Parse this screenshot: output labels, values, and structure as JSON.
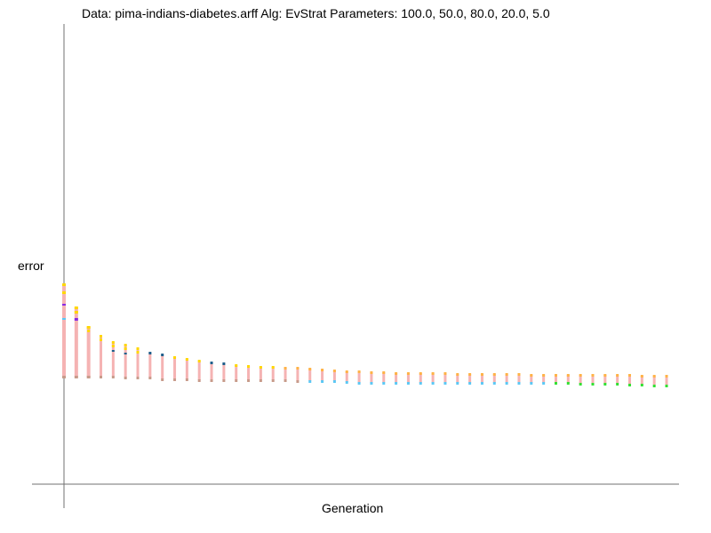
{
  "chart_data": {
    "type": "scatter",
    "title": "Data: pima-indians-diabetes.arff    Alg: EvStrat    Parameters: 100.0, 50.0, 80.0, 20.0, 5.0",
    "xlabel": "Generation",
    "ylabel": "error",
    "grid": false,
    "legend": "none",
    "axes_have_tick_labels": false,
    "colors": {
      "main": "#f5b3b3",
      "top_early": "#ffd700",
      "top_mid": "#ffb347",
      "dark": "#1f5f8b",
      "purple": "#8a2be2",
      "cyan": "#5bc8f5",
      "green": "#33e033",
      "bottom_edge": "#c89b8b"
    },
    "x": [
      1,
      2,
      3,
      4,
      5,
      6,
      7,
      8,
      9,
      10,
      11,
      12,
      13,
      14,
      15,
      16,
      17,
      18,
      19,
      20,
      21,
      22,
      23,
      24,
      25,
      26,
      27,
      28,
      29,
      30,
      31,
      32,
      33,
      34,
      35,
      36,
      37,
      38,
      39,
      40,
      41,
      42,
      43,
      44,
      45,
      46,
      47,
      48,
      49,
      50
    ],
    "series": [
      {
        "kind": "population_max_error",
        "values": [
          320,
          346,
          368,
          378,
          385,
          388,
          392,
          397,
          399,
          402,
          404,
          406,
          408,
          409,
          411,
          412,
          413,
          413,
          414,
          414,
          415,
          416,
          417,
          418,
          418,
          419,
          419,
          420,
          420,
          420,
          420,
          420,
          421,
          421,
          421,
          421,
          421,
          421,
          422,
          422,
          422,
          422,
          422,
          422,
          422,
          422,
          422,
          423,
          423,
          423
        ]
      },
      {
        "kind": "population_min_error",
        "values": [
          424,
          424,
          424,
          424,
          424,
          425,
          425,
          425,
          427,
          427,
          427,
          428,
          428,
          428,
          428,
          428,
          428,
          428,
          428,
          429,
          429,
          429,
          429,
          430,
          431,
          431,
          431,
          431,
          431,
          431,
          431,
          431,
          431,
          431,
          431,
          431,
          431,
          431,
          431,
          431,
          431,
          431,
          432,
          432,
          432,
          432,
          433,
          433,
          434,
          434
        ]
      }
    ]
  }
}
